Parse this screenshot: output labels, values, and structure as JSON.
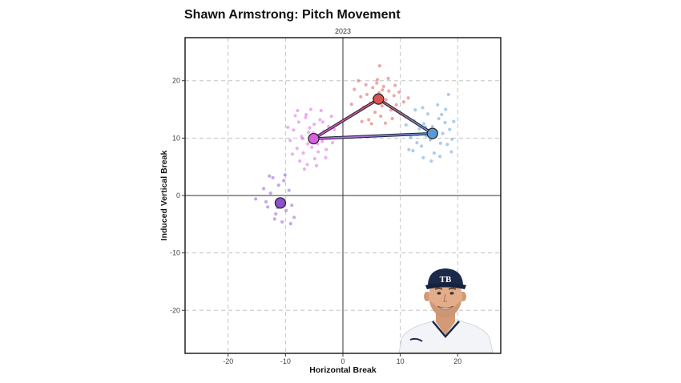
{
  "chart_data": {
    "type": "scatter",
    "title": "Shawn Armstrong: Pitch Movement",
    "subtitle": "2023",
    "xlabel": "Horizontal Break",
    "ylabel": "Induced Vertical Break",
    "xlim": [
      -27.5,
      27.5
    ],
    "ylim": [
      -27.5,
      27.5
    ],
    "x_ticks": [
      -20,
      -10,
      0,
      10,
      20
    ],
    "y_ticks": [
      -20,
      -10,
      0,
      10,
      20
    ],
    "grid": true,
    "legend": "none",
    "series": [
      {
        "color": "#d9534f",
        "center": [
          6.2,
          16.8
        ],
        "points": [
          [
            2.0,
            18.5
          ],
          [
            3.1,
            17.2
          ],
          [
            4.0,
            19.3
          ],
          [
            4.8,
            16.1
          ],
          [
            5.2,
            18.8
          ],
          [
            5.6,
            14.5
          ],
          [
            6.0,
            20.2
          ],
          [
            6.3,
            17.9
          ],
          [
            6.8,
            15.6
          ],
          [
            7.1,
            19.0
          ],
          [
            7.5,
            16.7
          ],
          [
            8.0,
            18.2
          ],
          [
            8.4,
            14.9
          ],
          [
            8.9,
            17.4
          ],
          [
            9.3,
            15.8
          ],
          [
            9.8,
            18.0
          ],
          [
            10.6,
            16.3
          ],
          [
            11.4,
            17.0
          ],
          [
            3.6,
            15.4
          ],
          [
            4.5,
            13.2
          ],
          [
            5.0,
            12.5
          ],
          [
            6.6,
            13.8
          ],
          [
            7.4,
            12.6
          ],
          [
            6.4,
            22.6
          ],
          [
            1.5,
            15.9
          ],
          [
            2.7,
            20.0
          ],
          [
            5.9,
            19.6
          ],
          [
            7.9,
            20.4
          ],
          [
            9.1,
            19.2
          ],
          [
            3.3,
            12.9
          ],
          [
            8.6,
            13.4
          ],
          [
            10.1,
            14.2
          ],
          [
            4.2,
            17.6
          ],
          [
            6.9,
            18.4
          ],
          [
            5.4,
            16.9
          ]
        ]
      },
      {
        "color": "#5b9bd5",
        "center": [
          15.6,
          10.8
        ],
        "points": [
          [
            11.0,
            12.3
          ],
          [
            11.8,
            10.1
          ],
          [
            12.4,
            13.0
          ],
          [
            12.9,
            9.2
          ],
          [
            13.3,
            11.6
          ],
          [
            13.7,
            8.6
          ],
          [
            14.1,
            12.5
          ],
          [
            14.5,
            10.4
          ],
          [
            14.8,
            14.2
          ],
          [
            15.2,
            9.7
          ],
          [
            15.6,
            12.0
          ],
          [
            15.9,
            7.4
          ],
          [
            16.3,
            11.2
          ],
          [
            16.7,
            13.4
          ],
          [
            17.0,
            9.1
          ],
          [
            17.4,
            10.8
          ],
          [
            17.8,
            12.7
          ],
          [
            18.2,
            8.9
          ],
          [
            18.6,
            11.5
          ],
          [
            19.0,
            9.8
          ],
          [
            14.0,
            6.6
          ],
          [
            15.4,
            6.0
          ],
          [
            16.9,
            6.8
          ],
          [
            12.2,
            7.8
          ],
          [
            17.9,
            15.0
          ],
          [
            18.4,
            17.6
          ],
          [
            16.5,
            15.8
          ],
          [
            13.9,
            15.3
          ],
          [
            11.5,
            8.0
          ],
          [
            19.3,
            12.9
          ],
          [
            15.0,
            11.3
          ],
          [
            16.0,
            10.2
          ],
          [
            14.4,
            11.9
          ],
          [
            17.2,
            14.1
          ],
          [
            13.0,
            10.6
          ],
          [
            18.9,
            7.6
          ],
          [
            12.6,
            14.9
          ]
        ]
      },
      {
        "color": "#da5fdf",
        "center": [
          -5.1,
          9.9
        ],
        "points": [
          [
            -9.2,
            9.6
          ],
          [
            -8.6,
            11.4
          ],
          [
            -8.0,
            8.2
          ],
          [
            -7.7,
            12.8
          ],
          [
            -7.2,
            10.3
          ],
          [
            -6.9,
            7.4
          ],
          [
            -6.5,
            13.6
          ],
          [
            -6.1,
            9.0
          ],
          [
            -5.8,
            11.8
          ],
          [
            -5.4,
            8.4
          ],
          [
            -5.0,
            12.4
          ],
          [
            -4.7,
            10.6
          ],
          [
            -4.3,
            7.6
          ],
          [
            -4.0,
            13.2
          ],
          [
            -3.6,
            9.4
          ],
          [
            -3.3,
            11.2
          ],
          [
            -2.9,
            8.0
          ],
          [
            -2.5,
            12.0
          ],
          [
            -2.2,
            10.0
          ],
          [
            -1.8,
            9.2
          ],
          [
            -7.5,
            6.0
          ],
          [
            -6.2,
            5.4
          ],
          [
            -4.9,
            6.4
          ],
          [
            -3.8,
            14.8
          ],
          [
            -5.6,
            15.0
          ],
          [
            -8.3,
            13.9
          ],
          [
            -9.6,
            11.9
          ],
          [
            -6.7,
            4.6
          ],
          [
            -3.0,
            6.6
          ],
          [
            -1.5,
            11.5
          ],
          [
            -7.0,
            9.9
          ],
          [
            -5.2,
            10.9
          ],
          [
            -4.4,
            9.0
          ],
          [
            -6.0,
            11.0
          ],
          [
            -3.5,
            12.8
          ],
          [
            -8.8,
            7.2
          ],
          [
            -2.0,
            13.8
          ],
          [
            -6.4,
            14.1
          ],
          [
            -4.6,
            5.2
          ],
          [
            -7.9,
            14.8
          ]
        ]
      },
      {
        "color": "#8e4fd1",
        "center": [
          -10.9,
          -1.3
        ],
        "points": [
          [
            -15.2,
            -0.6
          ],
          [
            -13.8,
            1.2
          ],
          [
            -13.1,
            -2.0
          ],
          [
            -12.6,
            0.4
          ],
          [
            -12.2,
            3.1
          ],
          [
            -11.7,
            -3.2
          ],
          [
            -11.2,
            1.8
          ],
          [
            -10.8,
            -0.8
          ],
          [
            -10.3,
            2.6
          ],
          [
            -9.9,
            -2.6
          ],
          [
            -9.4,
            0.9
          ],
          [
            -8.9,
            -1.7
          ],
          [
            -8.5,
            -3.8
          ],
          [
            -11.9,
            -4.1
          ],
          [
            -10.6,
            -4.6
          ],
          [
            -9.1,
            -4.9
          ],
          [
            -12.8,
            3.4
          ],
          [
            -10.1,
            3.6
          ],
          [
            -13.4,
            -1.1
          ],
          [
            -11.4,
            -2.1
          ]
        ]
      }
    ],
    "connections": [
      {
        "from": 2,
        "to": 0
      },
      {
        "from": 0,
        "to": 1
      },
      {
        "from": 1,
        "to": 2
      }
    ],
    "player_image": "shawn-armstrong-headshot"
  }
}
